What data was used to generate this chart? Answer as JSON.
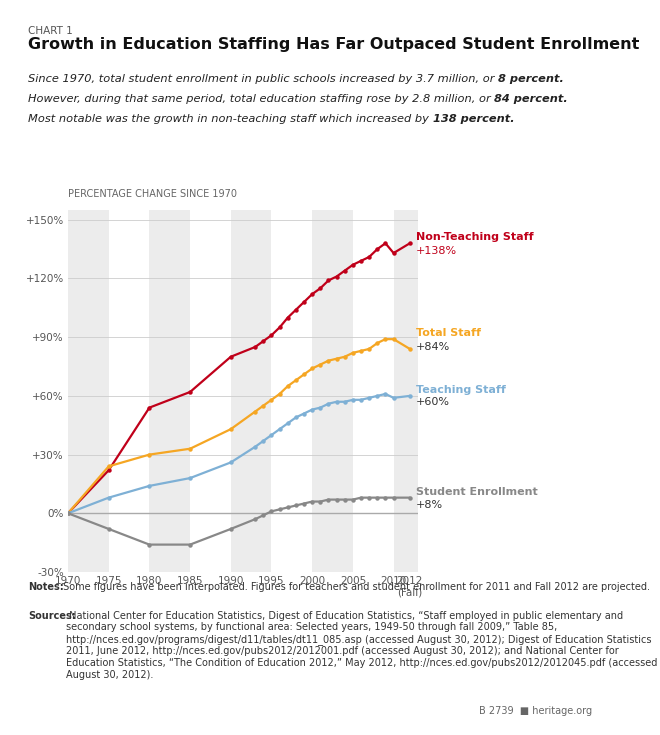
{
  "chart_label": "CHART 1",
  "title": "Growth in Education Staffing Has Far Outpaced Student Enrollment",
  "subtitle_parts": [
    {
      "text": "Since 1970, total student enrollment in public schools increased by 3.7 million, or ",
      "bold": false
    },
    {
      "text": "8 percent.",
      "bold": true
    },
    {
      "text": "\nHowever, during that same period, total education staffing rose by 2.8 million, or ",
      "bold": false
    },
    {
      "text": "84 percent.",
      "bold": true
    },
    {
      "text": "\nMost notable was the growth in non-teaching staff which increased by ",
      "bold": false
    },
    {
      "text": "138 percent.",
      "bold": true
    }
  ],
  "ylabel": "PERCENTAGE CHANGE SINCE 1970",
  "ylim": [
    -30,
    155
  ],
  "yticks": [
    -30,
    0,
    30,
    60,
    90,
    120,
    150
  ],
  "ytick_labels": [
    "-30%",
    "0%",
    "+30%",
    "+60%",
    "+90%",
    "+120%",
    "+150%"
  ],
  "notes_bold": "Notes:",
  "notes_rest": " Some figures have been interpolated. Figures for teachers and student enrollment for 2011 and Fall 2012 are projected.",
  "sources_bold": "Sources:",
  "sources_rest": " National Center for Education Statistics, Digest of Education Statistics, “Staff employed in public elementary and secondary school systems, by functional area: Selected years, 1949-50 through fall 2009,” Table 85, http://nces.ed.gov/programs/digest/d11/tables/dt11_085.asp (accessed August 30, 2012); Digest of Education Statistics 2011, June 2012, http://nces.ed.gov/pubs2012/2012001.pdf (accessed August 30, 2012); and National Center for Education Statistics, “The Condition of Education 2012,” May 2012, http://nces.ed.gov/pubs2012/2012045.pdf (accessed August 30, 2012).",
  "catalog": "B 2739",
  "background_color": "#ffffff",
  "plot_bg_color": "#ececec",
  "stripe_color": "#ffffff",
  "series": {
    "non_teaching": {
      "label": "Non-Teaching Staff",
      "color": "#c0001a",
      "end_label": "+138%",
      "end_label_color": "#c0001a",
      "label_color": "#c0001a",
      "years": [
        1970,
        1975,
        1980,
        1985,
        1990,
        1993,
        1994,
        1995,
        1996,
        1997,
        1998,
        1999,
        2000,
        2001,
        2002,
        2003,
        2004,
        2005,
        2006,
        2007,
        2008,
        2009,
        2010,
        2012
      ],
      "values": [
        0,
        22,
        54,
        62,
        80,
        85,
        88,
        91,
        95,
        100,
        104,
        108,
        112,
        115,
        119,
        121,
        124,
        127,
        129,
        131,
        135,
        138,
        133,
        138
      ]
    },
    "total_staff": {
      "label": "Total Staff",
      "color": "#f5a623",
      "end_label": "+84%",
      "end_label_color": "#333333",
      "label_color": "#f5a623",
      "years": [
        1970,
        1975,
        1980,
        1985,
        1990,
        1993,
        1994,
        1995,
        1996,
        1997,
        1998,
        1999,
        2000,
        2001,
        2002,
        2003,
        2004,
        2005,
        2006,
        2007,
        2008,
        2009,
        2010,
        2012
      ],
      "values": [
        0,
        24,
        30,
        33,
        43,
        52,
        55,
        58,
        61,
        65,
        68,
        71,
        74,
        76,
        78,
        79,
        80,
        82,
        83,
        84,
        87,
        89,
        89,
        84
      ]
    },
    "teaching": {
      "label": "Teaching Staff",
      "color": "#7eb0d5",
      "end_label": "+60%",
      "end_label_color": "#333333",
      "label_color": "#7eb0d5",
      "years": [
        1970,
        1975,
        1980,
        1985,
        1990,
        1993,
        1994,
        1995,
        1996,
        1997,
        1998,
        1999,
        2000,
        2001,
        2002,
        2003,
        2004,
        2005,
        2006,
        2007,
        2008,
        2009,
        2010,
        2012
      ],
      "values": [
        0,
        8,
        14,
        18,
        26,
        34,
        37,
        40,
        43,
        46,
        49,
        51,
        53,
        54,
        56,
        57,
        57,
        58,
        58,
        59,
        60,
        61,
        59,
        60
      ]
    },
    "enrollment": {
      "label": "Student Enrollment",
      "color": "#888888",
      "end_label": "+8%",
      "end_label_color": "#333333",
      "label_color": "#888888",
      "years": [
        1970,
        1975,
        1980,
        1985,
        1990,
        1993,
        1994,
        1995,
        1996,
        1997,
        1998,
        1999,
        2000,
        2001,
        2002,
        2003,
        2004,
        2005,
        2006,
        2007,
        2008,
        2009,
        2010,
        2012
      ],
      "values": [
        0,
        -8,
        -16,
        -16,
        -8,
        -3,
        -1,
        1,
        2,
        3,
        4,
        5,
        6,
        6,
        7,
        7,
        7,
        7,
        8,
        8,
        8,
        8,
        8,
        8
      ]
    }
  }
}
